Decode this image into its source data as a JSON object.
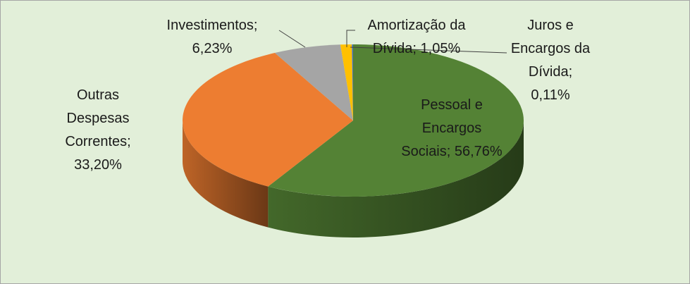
{
  "chart_data": {
    "type": "pie3d",
    "categories": [
      "Pessoal e Encargos Sociais;",
      "Outras Despesas Correntes;",
      "Investimentos;",
      "Amortização da Dívida;",
      "Juros e Encargos da Dívida;"
    ],
    "values": [
      56.76,
      33.2,
      6.23,
      1.05,
      0.11
    ],
    "value_labels": [
      "56,76%",
      "33,20%",
      "6,23%",
      "1,05%",
      "0,11%"
    ],
    "colors": [
      "#548235",
      "#ed7d31",
      "#a5a5a5",
      "#ffc000",
      "#4472c4"
    ]
  }
}
